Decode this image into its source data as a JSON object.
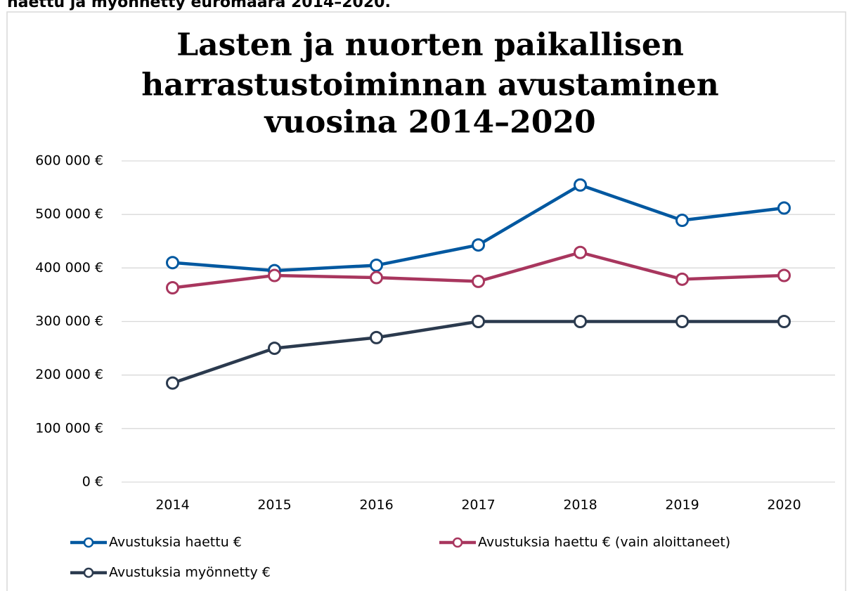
{
  "caption": "haettu ja myönnetty euromäärä 2014–2020.",
  "chart_data": {
    "type": "line",
    "title": [
      "Lasten ja nuorten paikallisen",
      "harrastustoiminnan avustaminen",
      "vuosina 2014–2020"
    ],
    "categories": [
      "2014",
      "2015",
      "2016",
      "2017",
      "2018",
      "2019",
      "2020"
    ],
    "series": [
      {
        "name": "Avustuksia haettu €",
        "color": "#0058a0",
        "values": [
          410000,
          395000,
          405000,
          443000,
          555000,
          489000,
          512000
        ]
      },
      {
        "name": "Avustuksia haettu € (vain aloittaneet)",
        "color": "#a8365e",
        "values": [
          363000,
          386000,
          382000,
          375000,
          429000,
          379000,
          386000
        ]
      },
      {
        "name": "Avustuksia myönnetty €",
        "color": "#2b3a4e",
        "values": [
          185000,
          250000,
          270000,
          300000,
          300000,
          300000,
          300000
        ]
      }
    ],
    "ylim": [
      0,
      600000
    ],
    "yticks": [
      {
        "value": 0,
        "label": "0 €"
      },
      {
        "value": 100000,
        "label": "100 000 €"
      },
      {
        "value": 200000,
        "label": "200 000 €"
      },
      {
        "value": 300000,
        "label": "300 000 €"
      },
      {
        "value": 400000,
        "label": "400 000 €"
      },
      {
        "value": 500000,
        "label": "500 000 €"
      },
      {
        "value": 600000,
        "label": "600 000 €"
      }
    ],
    "grid": true,
    "legend": "bottom"
  }
}
